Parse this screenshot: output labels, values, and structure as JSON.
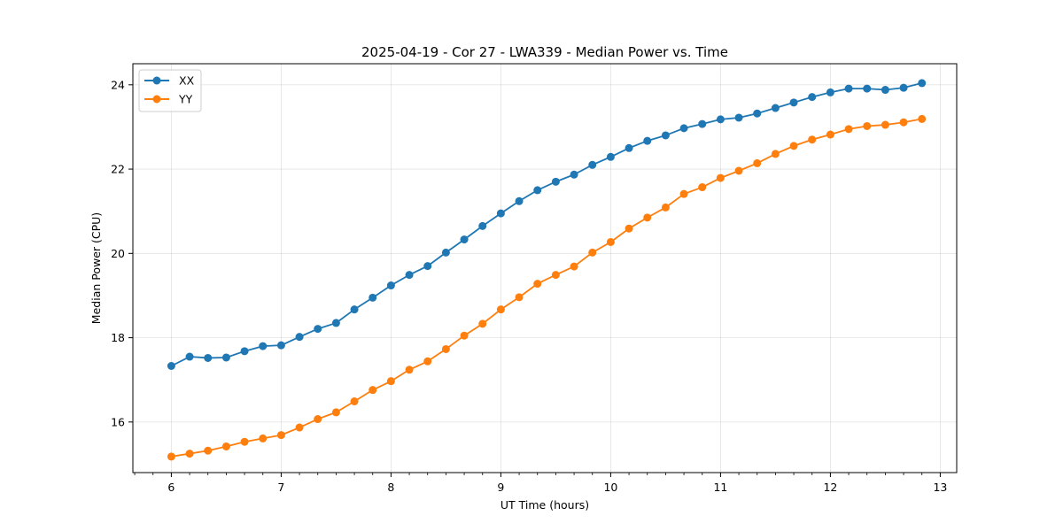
{
  "chart_data": {
    "type": "line",
    "title": "2025-04-19 - Cor 27 - LWA339 - Median Power vs. Time",
    "xlabel": "UT Time (hours)",
    "ylabel": "Median Power (CPU)",
    "xlim": [
      5.65,
      13.15
    ],
    "ylim": [
      14.8,
      24.5
    ],
    "xticks": [
      6,
      7,
      8,
      9,
      10,
      11,
      12,
      13
    ],
    "xtick_labels": [
      "6",
      "7",
      "8",
      "9",
      "10",
      "11",
      "12",
      "13"
    ],
    "yticks": [
      16,
      18,
      20,
      22,
      24
    ],
    "ytick_labels": [
      "16",
      "18",
      "20",
      "22",
      "24"
    ],
    "grid": true,
    "legend_position": "top-left",
    "x": [
      6.0,
      6.1667,
      6.3333,
      6.5,
      6.6667,
      6.8333,
      7.0,
      7.1667,
      7.3333,
      7.5,
      7.6667,
      7.8333,
      8.0,
      8.1667,
      8.3333,
      8.5,
      8.6667,
      8.8333,
      9.0,
      9.1667,
      9.3333,
      9.5,
      9.6667,
      9.8333,
      10.0,
      10.1667,
      10.3333,
      10.5,
      10.6667,
      10.8333,
      11.0,
      11.1667,
      11.3333,
      11.5,
      11.6667,
      11.8333,
      12.0,
      12.1667,
      12.3333,
      12.5,
      12.6667,
      12.8333
    ],
    "series": [
      {
        "name": "XX",
        "color": "#1f77b4",
        "values": [
          17.33,
          17.55,
          17.52,
          17.53,
          17.68,
          17.8,
          17.82,
          18.02,
          18.21,
          18.35,
          18.67,
          18.95,
          19.24,
          19.49,
          19.7,
          20.02,
          20.33,
          20.65,
          20.95,
          21.24,
          21.5,
          21.7,
          21.87,
          22.1,
          22.29,
          22.5,
          22.67,
          22.8,
          22.97,
          23.07,
          23.18,
          23.22,
          23.32,
          23.45,
          23.58,
          23.71,
          23.82,
          23.91,
          23.91,
          23.88,
          23.93,
          24.04
        ]
      },
      {
        "name": "YY",
        "color": "#ff7f0e",
        "values": [
          15.18,
          15.25,
          15.32,
          15.42,
          15.53,
          15.61,
          15.69,
          15.87,
          16.07,
          16.23,
          16.49,
          16.76,
          16.97,
          17.24,
          17.44,
          17.73,
          18.05,
          18.33,
          18.67,
          18.96,
          19.28,
          19.49,
          19.69,
          20.02,
          20.27,
          20.59,
          20.85,
          21.09,
          21.41,
          21.57,
          21.79,
          21.96,
          22.14,
          22.36,
          22.55,
          22.7,
          22.82,
          22.95,
          23.02,
          23.05,
          23.11,
          23.19
        ]
      }
    ]
  }
}
